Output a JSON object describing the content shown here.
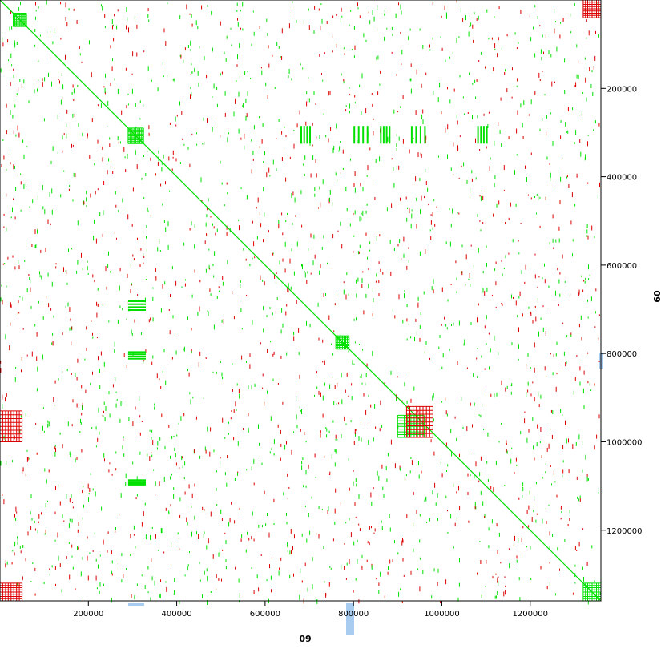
{
  "chart_data": {
    "type": "scatter",
    "title": "",
    "xlabel": "09",
    "ylabel": "09",
    "xlim": [
      0,
      1360000
    ],
    "ylim": [
      0,
      1360000
    ],
    "y_inverted": true,
    "x_ticks": [
      200000,
      400000,
      600000,
      800000,
      1000000,
      1200000
    ],
    "y_ticks": [
      200000,
      400000,
      600000,
      800000,
      1000000,
      1200000
    ],
    "x_tick_labels": [
      "200000",
      "400000",
      "600000",
      "800000",
      "1000000",
      "1200000"
    ],
    "y_tick_labels": [
      "200000",
      "400000",
      "600000",
      "800000",
      "1000000",
      "1200000"
    ],
    "grid": false,
    "legend": "none",
    "colors": {
      "forward": "#00e000",
      "reverse": "#dd0000",
      "marginal": "#a8ccf0",
      "frame": "#000000"
    },
    "series": [
      {
        "strand": "forward",
        "diagonal": [
          [
            0,
            0
          ],
          [
            1360000,
            1360000
          ]
        ],
        "blocks": [
          [
            290000,
            325000,
            290000,
            325000
          ],
          [
            900000,
            960000,
            940000,
            990000
          ],
          [
            760000,
            790000,
            760000,
            790000
          ],
          [
            1320000,
            1360000,
            1320000,
            1360000
          ],
          [
            30000,
            60000,
            30000,
            60000
          ]
        ],
        "stripe_clusters": [
          [
            680000,
            700000,
            285000,
            325000
          ],
          [
            800000,
            830000,
            285000,
            325000
          ],
          [
            860000,
            880000,
            285000,
            325000
          ],
          [
            930000,
            960000,
            285000,
            325000
          ],
          [
            1080000,
            1100000,
            285000,
            325000
          ],
          [
            290000,
            330000,
            680000,
            700000
          ],
          [
            290000,
            330000,
            795000,
            810000
          ],
          [
            290000,
            330000,
            1085000,
            1095000
          ]
        ]
      },
      {
        "strand": "reverse",
        "blocks": [
          [
            0,
            50000,
            930000,
            1000000
          ],
          [
            1320000,
            1360000,
            0,
            40000
          ],
          [
            0,
            50000,
            1320000,
            1360000
          ],
          [
            920000,
            980000,
            920000,
            990000
          ]
        ]
      }
    ]
  }
}
